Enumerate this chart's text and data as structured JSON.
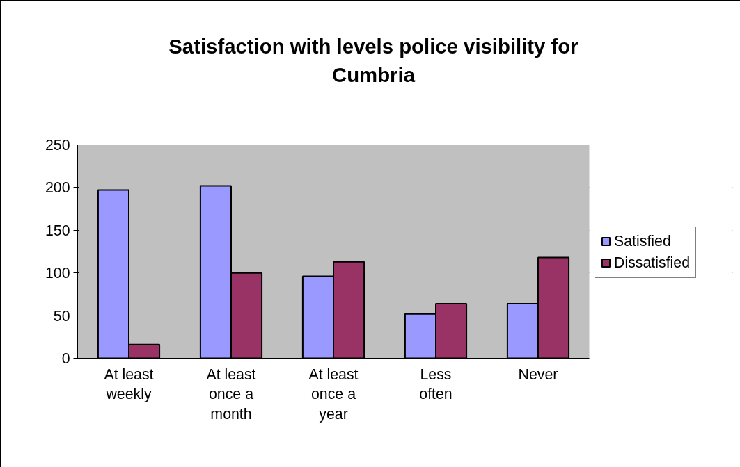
{
  "chart_data": {
    "type": "bar",
    "title": "Satisfaction with levels police visibility for Cumbria",
    "categories": [
      "At least weekly",
      "At least once a month",
      "At least once a year",
      "Less often",
      "Never"
    ],
    "series": [
      {
        "name": "Satisfied",
        "color": "#9999ff",
        "values": [
          197,
          202,
          96,
          52,
          64
        ]
      },
      {
        "name": "Dissatisfied",
        "color": "#993366",
        "values": [
          16,
          100,
          113,
          64,
          118
        ]
      }
    ],
    "ylim": [
      0,
      250
    ],
    "yticks": [
      0,
      50,
      100,
      150,
      200,
      250
    ],
    "grid": "y",
    "legend": "right"
  }
}
